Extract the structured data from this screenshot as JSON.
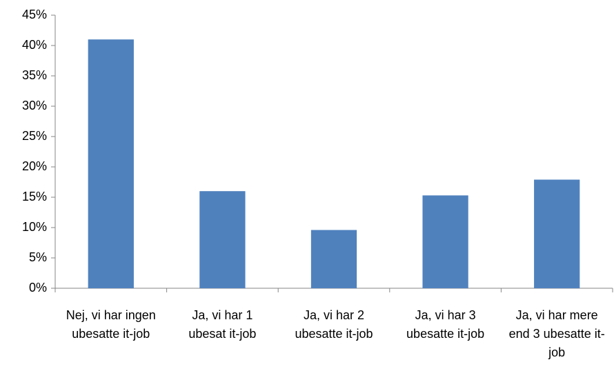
{
  "chart_data": {
    "type": "bar",
    "categories": [
      "Nej, vi har ingen ubesatte it-job",
      "Ja, vi har 1 ubesat it-job",
      "Ja, vi har 2 ubesatte it-job",
      "Ja, vi har 3 ubesatte it-job",
      "Ja, vi har mere end 3 ubesatte it-job"
    ],
    "values": [
      41,
      16,
      9.6,
      15.3,
      17.9
    ],
    "color": "#4f81bd",
    "ylim": [
      0,
      45
    ],
    "yticks": [
      {
        "value": 0,
        "label": "0%"
      },
      {
        "value": 5,
        "label": "5%"
      },
      {
        "value": 10,
        "label": "10%"
      },
      {
        "value": 15,
        "label": "15%"
      },
      {
        "value": 20,
        "label": "20%"
      },
      {
        "value": 25,
        "label": "25%"
      },
      {
        "value": 30,
        "label": "30%"
      },
      {
        "value": 35,
        "label": "35%"
      },
      {
        "value": 40,
        "label": "40%"
      },
      {
        "value": 45,
        "label": "45%"
      }
    ],
    "grid": false
  }
}
